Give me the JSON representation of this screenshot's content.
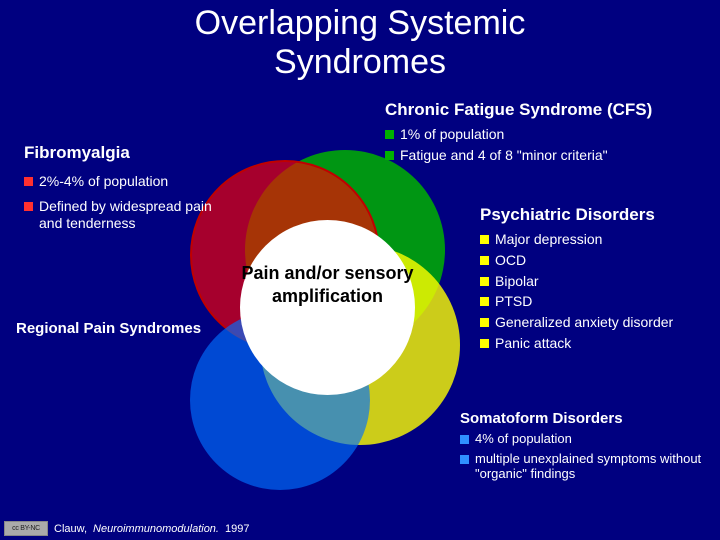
{
  "title_line1": "Overlapping Systemic",
  "title_line2": "Syndromes",
  "bullet_colors": {
    "green": "#00b000",
    "red": "#ff3030",
    "yellow": "#ffff00",
    "blue": "#3090ff"
  },
  "center_label": "Pain and/or sensory amplification",
  "venn_colors": {
    "red": "#ff0000",
    "green": "#00b000",
    "yellow": "#ffff00",
    "blue": "#0070ff",
    "white": "#ffffff",
    "background": "#000080"
  },
  "cfs": {
    "heading": "Chronic Fatigue Syndrome (CFS)",
    "items": [
      "1% of population",
      "Fatigue and 4 of 8 \"minor criteria\""
    ],
    "bullet_color": "green"
  },
  "fibro": {
    "heading": "Fibromyalgia",
    "items": [
      "2%-4% of population",
      "Defined by widespread pain and tenderness"
    ],
    "bullet_color": "red"
  },
  "psych": {
    "heading": "Psychiatric Disorders",
    "items": [
      "Major depression",
      "OCD",
      "Bipolar",
      "PTSD",
      "Generalized anxiety disorder",
      "Panic attack"
    ],
    "bullet_color": "yellow"
  },
  "soma": {
    "heading": "Somatoform Disorders",
    "items": [
      "4% of population",
      "multiple unexplained symptoms without \"organic\" findings"
    ],
    "bullet_color": "blue"
  },
  "regional": {
    "heading": "Regional Pain Syndromes"
  },
  "citation": {
    "badge": "cc BY-NC",
    "author": "Clauw,",
    "journal": "Neuroimmunomodulation.",
    "year": "1997"
  }
}
